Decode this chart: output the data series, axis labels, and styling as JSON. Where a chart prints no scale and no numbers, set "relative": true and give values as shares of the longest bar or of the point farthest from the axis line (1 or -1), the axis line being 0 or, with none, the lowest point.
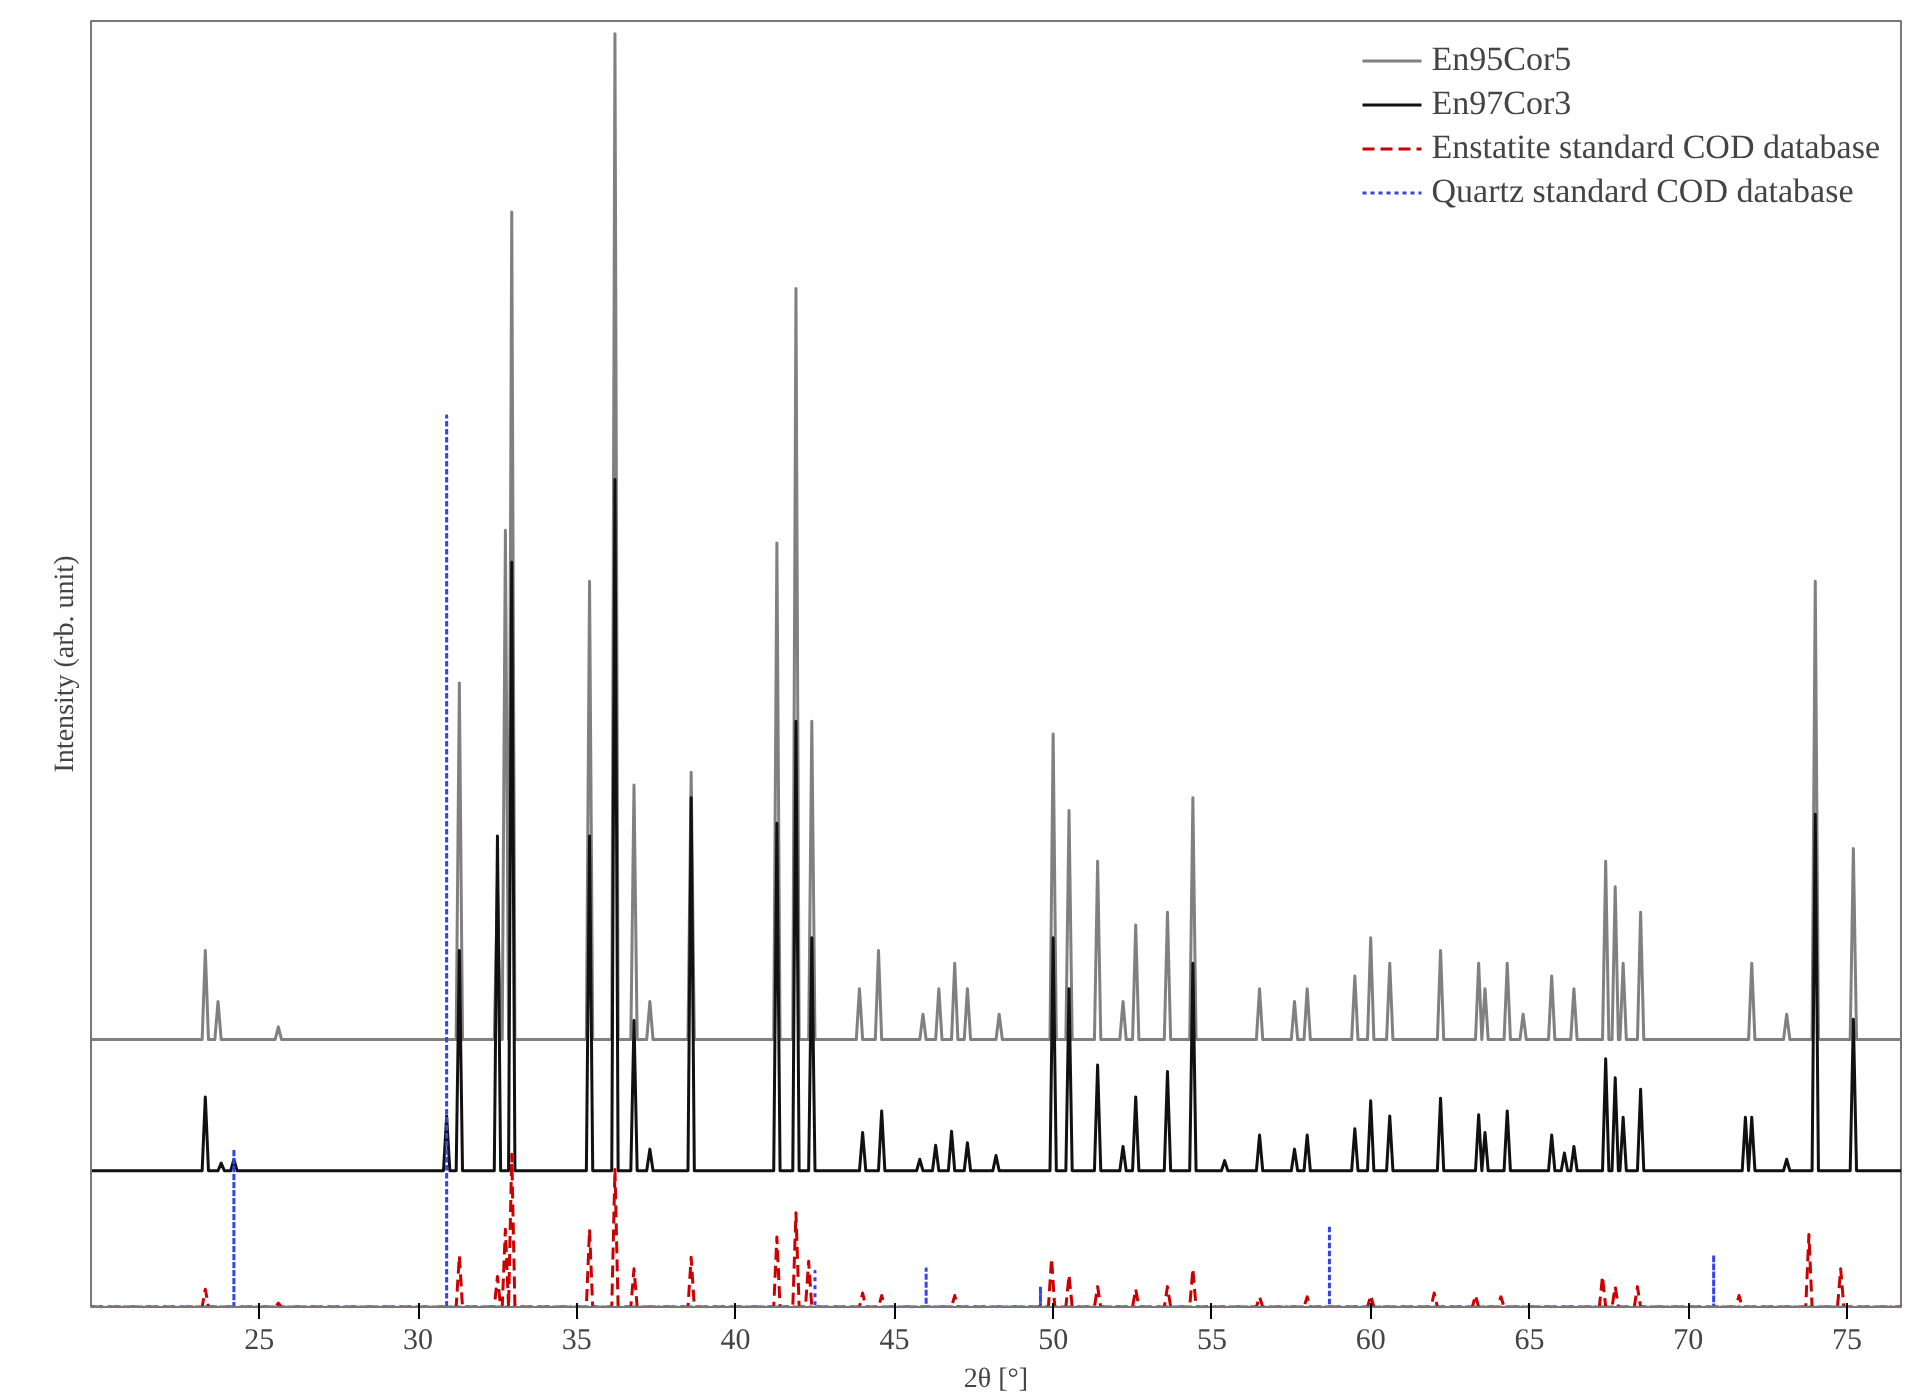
{
  "chart_data": {
    "type": "line",
    "relative": true,
    "xlabel": "2θ [°]",
    "ylabel": "Intensity (arb. unit)",
    "xlim": [
      19.7,
      76.7
    ],
    "xticks": [
      25,
      30,
      35,
      40,
      45,
      50,
      55,
      60,
      65,
      70,
      75
    ],
    "legend": "top right",
    "grid": false,
    "marker": "none",
    "series": [
      {
        "name": "En95Cor5",
        "color": "#808080",
        "line_style": "solid",
        "x": [
          19.7,
          23.2,
          23.3,
          23.4,
          23.6,
          23.7,
          23.8,
          25.5,
          25.6,
          25.7,
          31.2,
          31.3,
          31.4,
          32.4,
          32.5,
          32.6,
          32.65,
          32.75,
          32.85,
          32.85,
          32.95,
          33.05,
          35.3,
          35.4,
          35.5,
          36.1,
          36.2,
          36.3,
          36.7,
          36.8,
          36.9,
          37.2,
          37.3,
          37.4,
          38.5,
          38.6,
          38.7,
          41.2,
          41.3,
          41.4,
          41.8,
          41.9,
          42.0,
          42.3,
          42.4,
          42.5,
          43.8,
          43.9,
          44.0,
          44.4,
          44.5,
          44.6,
          45.8,
          45.9,
          46.0,
          46.3,
          46.4,
          46.5,
          46.8,
          46.9,
          47.0,
          47.2,
          47.3,
          47.4,
          48.2,
          48.3,
          48.4,
          49.9,
          50.0,
          50.1,
          50.4,
          50.5,
          50.6,
          51.3,
          51.4,
          51.5,
          52.1,
          52.2,
          52.3,
          52.5,
          52.6,
          52.7,
          53.5,
          53.6,
          53.7,
          54.3,
          54.4,
          54.5,
          56.4,
          56.5,
          56.6,
          57.5,
          57.6,
          57.7,
          57.9,
          58.0,
          58.1,
          59.4,
          59.5,
          59.6,
          59.9,
          60.0,
          60.1,
          60.5,
          60.6,
          60.7,
          62.1,
          62.2,
          62.3,
          63.3,
          63.4,
          63.5,
          63.5,
          63.6,
          63.7,
          64.2,
          64.3,
          64.4,
          64.7,
          64.8,
          64.9,
          65.6,
          65.7,
          65.8,
          66.3,
          66.4,
          66.5,
          67.3,
          67.4,
          67.5,
          67.6,
          67.7,
          67.8,
          67.85,
          67.95,
          68.05,
          68.4,
          68.5,
          68.6,
          71.9,
          72.0,
          72.1,
          73.0,
          73.1,
          73.2,
          73.9,
          74.0,
          74.1,
          75.1,
          75.2,
          75.3,
          76.7
        ],
        "values": [
          0.21,
          0.21,
          0.28,
          0.21,
          0.21,
          0.24,
          0.21,
          0.21,
          0.22,
          0.21,
          0.21,
          0.49,
          0.21,
          0.21,
          0.33,
          0.21,
          0.21,
          0.61,
          0.21,
          0.21,
          0.86,
          0.21,
          0.21,
          0.57,
          0.21,
          0.21,
          1.0,
          0.21,
          0.21,
          0.41,
          0.21,
          0.21,
          0.24,
          0.21,
          0.21,
          0.42,
          0.21,
          0.21,
          0.6,
          0.21,
          0.21,
          0.8,
          0.21,
          0.21,
          0.46,
          0.21,
          0.21,
          0.25,
          0.21,
          0.21,
          0.28,
          0.21,
          0.21,
          0.23,
          0.21,
          0.21,
          0.25,
          0.21,
          0.21,
          0.27,
          0.21,
          0.21,
          0.25,
          0.21,
          0.21,
          0.23,
          0.21,
          0.21,
          0.45,
          0.21,
          0.21,
          0.39,
          0.21,
          0.21,
          0.35,
          0.21,
          0.21,
          0.24,
          0.21,
          0.21,
          0.3,
          0.21,
          0.21,
          0.31,
          0.21,
          0.21,
          0.4,
          0.21,
          0.21,
          0.25,
          0.21,
          0.21,
          0.24,
          0.21,
          0.21,
          0.25,
          0.21,
          0.21,
          0.26,
          0.21,
          0.21,
          0.29,
          0.21,
          0.21,
          0.27,
          0.21,
          0.21,
          0.28,
          0.21,
          0.21,
          0.27,
          0.21,
          0.21,
          0.25,
          0.21,
          0.21,
          0.27,
          0.21,
          0.21,
          0.23,
          0.21,
          0.21,
          0.26,
          0.21,
          0.21,
          0.25,
          0.21,
          0.21,
          0.35,
          0.21,
          0.21,
          0.33,
          0.21,
          0.21,
          0.27,
          0.21,
          0.21,
          0.31,
          0.21,
          0.21,
          0.27,
          0.21,
          0.21,
          0.23,
          0.21,
          0.21,
          0.57,
          0.21,
          0.21,
          0.36,
          0.21,
          0.21
        ]
      },
      {
        "name": "En97Cor3",
        "color": "#111111",
        "line_style": "solid",
        "x": [
          19.7,
          23.2,
          23.3,
          23.4,
          23.7,
          23.8,
          23.9,
          24.1,
          24.2,
          24.3,
          30.8,
          30.9,
          31.0,
          31.2,
          31.3,
          31.4,
          32.4,
          32.5,
          32.6,
          32.85,
          32.95,
          33.05,
          35.3,
          35.4,
          35.5,
          36.1,
          36.2,
          36.3,
          36.7,
          36.8,
          36.9,
          37.2,
          37.3,
          37.4,
          38.5,
          38.6,
          38.7,
          41.2,
          41.3,
          41.4,
          41.8,
          41.9,
          42.0,
          42.3,
          42.4,
          42.5,
          43.9,
          44.0,
          44.1,
          44.5,
          44.6,
          44.7,
          45.7,
          45.8,
          45.9,
          46.2,
          46.3,
          46.4,
          46.7,
          46.8,
          46.9,
          47.2,
          47.3,
          47.4,
          48.1,
          48.2,
          48.3,
          49.9,
          50.0,
          50.1,
          50.4,
          50.5,
          50.6,
          51.3,
          51.4,
          51.5,
          52.1,
          52.2,
          52.3,
          52.5,
          52.6,
          52.7,
          53.5,
          53.6,
          53.7,
          54.3,
          54.4,
          54.5,
          55.3,
          55.4,
          55.5,
          56.4,
          56.5,
          56.6,
          57.5,
          57.6,
          57.7,
          57.9,
          58.0,
          58.1,
          59.4,
          59.5,
          59.6,
          59.9,
          60.0,
          60.1,
          60.5,
          60.6,
          60.7,
          62.1,
          62.2,
          62.3,
          63.3,
          63.4,
          63.5,
          63.5,
          63.6,
          63.7,
          64.2,
          64.3,
          64.4,
          65.6,
          65.7,
          65.8,
          66.0,
          66.1,
          66.2,
          66.3,
          66.4,
          66.5,
          67.3,
          67.4,
          67.5,
          67.6,
          67.7,
          67.8,
          67.85,
          67.95,
          68.05,
          68.4,
          68.5,
          68.6,
          71.7,
          71.8,
          71.9,
          71.9,
          72.0,
          72.1,
          73.0,
          73.1,
          73.2,
          73.9,
          74.0,
          74.1,
          75.1,
          75.2,
          75.3,
          76.7
        ],
        "values": [
          0.107,
          0.107,
          0.165,
          0.107,
          0.107,
          0.113,
          0.107,
          0.107,
          0.116,
          0.107,
          0.107,
          0.15,
          0.107,
          0.107,
          0.28,
          0.107,
          0.107,
          0.37,
          0.107,
          0.107,
          0.585,
          0.107,
          0.107,
          0.37,
          0.107,
          0.107,
          0.65,
          0.107,
          0.107,
          0.225,
          0.107,
          0.107,
          0.124,
          0.107,
          0.107,
          0.4,
          0.107,
          0.107,
          0.38,
          0.107,
          0.107,
          0.46,
          0.107,
          0.107,
          0.29,
          0.107,
          0.107,
          0.137,
          0.107,
          0.107,
          0.154,
          0.107,
          0.107,
          0.116,
          0.107,
          0.107,
          0.127,
          0.107,
          0.107,
          0.138,
          0.107,
          0.107,
          0.129,
          0.107,
          0.107,
          0.119,
          0.107,
          0.107,
          0.29,
          0.107,
          0.107,
          0.25,
          0.107,
          0.107,
          0.19,
          0.107,
          0.107,
          0.126,
          0.107,
          0.107,
          0.165,
          0.107,
          0.107,
          0.185,
          0.107,
          0.107,
          0.27,
          0.107,
          0.107,
          0.115,
          0.107,
          0.107,
          0.135,
          0.107,
          0.107,
          0.124,
          0.107,
          0.107,
          0.135,
          0.107,
          0.107,
          0.14,
          0.107,
          0.107,
          0.162,
          0.107,
          0.107,
          0.15,
          0.107,
          0.107,
          0.164,
          0.107,
          0.107,
          0.151,
          0.107,
          0.107,
          0.137,
          0.107,
          0.107,
          0.154,
          0.107,
          0.107,
          0.135,
          0.107,
          0.107,
          0.121,
          0.107,
          0.107,
          0.126,
          0.107,
          0.107,
          0.195,
          0.107,
          0.107,
          0.18,
          0.107,
          0.107,
          0.149,
          0.107,
          0.107,
          0.171,
          0.107,
          0.107,
          0.149,
          0.107,
          0.107,
          0.149,
          0.107,
          0.107,
          0.116,
          0.107,
          0.107,
          0.387,
          0.107,
          0.107,
          0.226,
          0.107,
          0.107
        ]
      },
      {
        "name": "Enstatite standard COD database",
        "color": "#cc0000",
        "line_style": "dashed",
        "x": [
          19.7,
          23.2,
          23.3,
          23.4,
          25.5,
          25.6,
          25.7,
          31.2,
          31.3,
          31.4,
          32.4,
          32.5,
          32.6,
          32.65,
          32.75,
          32.85,
          32.85,
          32.95,
          33.05,
          35.3,
          35.4,
          35.5,
          36.1,
          36.2,
          36.3,
          36.7,
          36.8,
          36.9,
          38.5,
          38.6,
          38.7,
          41.2,
          41.3,
          41.4,
          41.8,
          41.9,
          42.0,
          42.2,
          42.3,
          42.4,
          43.9,
          44.0,
          44.1,
          44.5,
          44.6,
          44.7,
          46.8,
          46.9,
          47.0,
          49.85,
          49.95,
          50.05,
          50.4,
          50.5,
          50.6,
          51.3,
          51.4,
          51.5,
          52.5,
          52.6,
          52.7,
          53.5,
          53.6,
          53.7,
          54.3,
          54.4,
          54.5,
          56.4,
          56.5,
          56.6,
          57.9,
          58.0,
          58.1,
          59.9,
          60.0,
          60.1,
          61.9,
          62.0,
          62.1,
          63.2,
          63.3,
          63.4,
          64.0,
          64.1,
          64.2,
          67.2,
          67.3,
          67.4,
          67.6,
          67.7,
          67.8,
          68.3,
          68.4,
          68.5,
          71.5,
          71.6,
          71.7,
          73.7,
          73.8,
          73.9,
          74.7,
          74.8,
          74.9,
          76.7
        ],
        "values": [
          0,
          0,
          0.014,
          0,
          0,
          0.003,
          0,
          0,
          0.04,
          0,
          0,
          0.024,
          0,
          0,
          0.061,
          0,
          0,
          0.12,
          0,
          0,
          0.061,
          0,
          0,
          0.108,
          0,
          0,
          0.03,
          0,
          0,
          0.039,
          0,
          0,
          0.055,
          0,
          0,
          0.074,
          0,
          0,
          0.036,
          0,
          0,
          0.011,
          0,
          0,
          0.009,
          0,
          0,
          0.009,
          0,
          0,
          0.038,
          0,
          0,
          0.025,
          0,
          0,
          0.016,
          0,
          0,
          0.014,
          0,
          0,
          0.016,
          0,
          0,
          0.03,
          0,
          0,
          0.008,
          0,
          0,
          0.008,
          0,
          0,
          0.009,
          0,
          0,
          0.011,
          0,
          0,
          0.009,
          0,
          0,
          0.008,
          0,
          0,
          0.024,
          0,
          0,
          0.016,
          0,
          0,
          0.016,
          0,
          0,
          0.009,
          0,
          0,
          0.057,
          0,
          0,
          0.03,
          0,
          0
        ]
      },
      {
        "name": "Quartz standard COD database",
        "color": "#3344ee",
        "line_style": "dotted",
        "x": [
          19.7,
          24.2,
          24.2,
          24.2,
          30.9,
          30.9,
          30.9,
          42.5,
          42.5,
          42.5,
          46.0,
          46.0,
          46.0,
          49.6,
          49.6,
          49.6,
          58.7,
          58.7,
          58.7,
          70.8,
          70.8,
          70.8,
          76.7
        ],
        "values": [
          0,
          0,
          0.124,
          0,
          0,
          0.7,
          0,
          0,
          0.028,
          0,
          0,
          0.03,
          0,
          0,
          0.016,
          0,
          0,
          0.064,
          0,
          0,
          0.041,
          0,
          0
        ]
      }
    ]
  }
}
